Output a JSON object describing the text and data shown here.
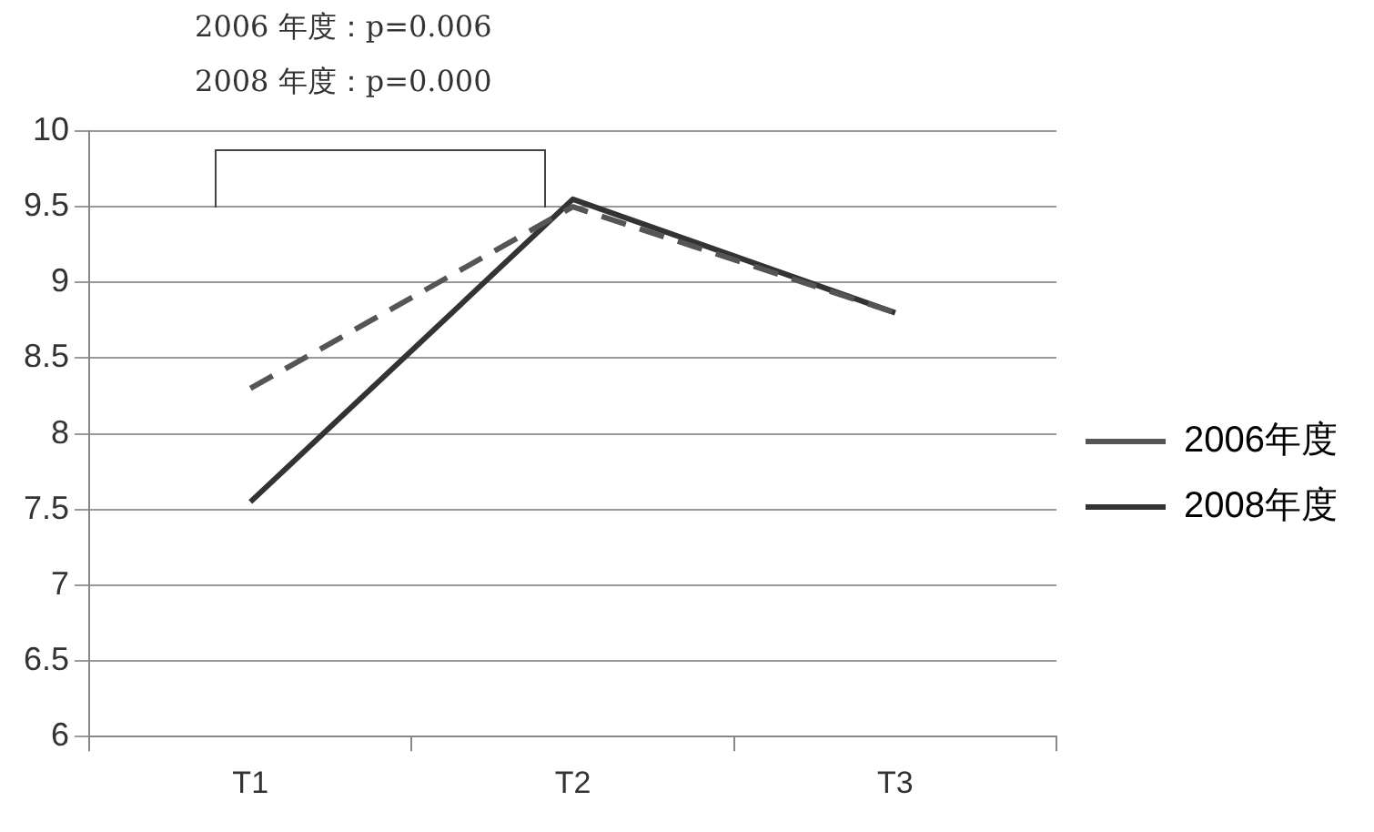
{
  "chart_data": {
    "type": "line",
    "categories": [
      "T1",
      "T2",
      "T3"
    ],
    "series": [
      {
        "name": "2006年度",
        "color": "#555555",
        "values": [
          8.3,
          9.5,
          8.8
        ],
        "line_style": "dashed"
      },
      {
        "name": "2008年度",
        "color": "#333333",
        "values": [
          7.55,
          9.55,
          8.8
        ],
        "line_style": "solid"
      }
    ],
    "ylim": [
      6,
      10
    ],
    "yticks": [
      6,
      6.5,
      7,
      7.5,
      8,
      8.5,
      9,
      9.5,
      10
    ],
    "annotations": [
      "2006 年度：p=0.006",
      "2008 年度：p=0.000"
    ],
    "grid": "y",
    "legend": "right",
    "marker": "none"
  }
}
